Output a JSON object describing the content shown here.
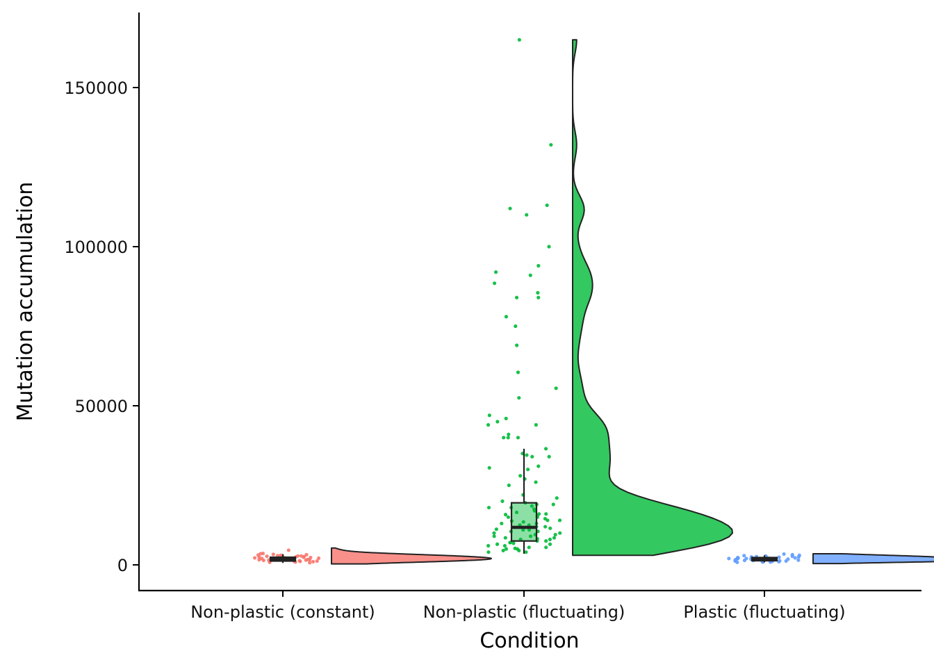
{
  "chart_data": {
    "type": "raincloud",
    "xlabel": "Condition",
    "ylabel": "Mutation accumulation",
    "ylim": [
      -7500,
      172000
    ],
    "yticks": [
      0,
      50000,
      100000,
      150000
    ],
    "yticks_text": [
      "0",
      "50000",
      "100000",
      "150000"
    ],
    "categories": [
      "Non-plastic (constant)",
      "Non-plastic (fluctuating)",
      "Plastic (fluctuating)"
    ],
    "grid": false,
    "legend": "none",
    "groups": [
      {
        "color": "#F8766D",
        "box": {
          "min": 600,
          "q1": 1200,
          "median": 1800,
          "q3": 2400,
          "max": 3400
        },
        "density_range": [
          300,
          5300
        ],
        "points": [
          1200,
          1500,
          1800,
          2100,
          2500,
          900,
          1600,
          2300,
          2800,
          3200,
          1100,
          1900,
          2600,
          3500,
          4600,
          1400,
          2000,
          2400,
          700,
          1700,
          2200,
          3000,
          1300,
          1900,
          2700,
          3300,
          1000,
          1600,
          2100,
          2900,
          1500,
          2400,
          3100,
          800,
          1800,
          2500,
          1200,
          2000,
          2800,
          3600
        ]
      },
      {
        "color": "#00BA38",
        "box": {
          "min": 3500,
          "q1": 7500,
          "median": 11800,
          "q3": 19500,
          "max": 36500
        },
        "density_range": [
          3000,
          165000
        ],
        "points": [
          165000,
          132000,
          113000,
          112000,
          110000,
          100000,
          94000,
          92000,
          91000,
          88500,
          85500,
          84000,
          84000,
          78000,
          75000,
          69000,
          60500,
          55500,
          52500,
          47000,
          46000,
          45000,
          44000,
          44000,
          41000,
          40000,
          40000,
          40000,
          36500,
          35000,
          34500,
          34000,
          34000,
          31000,
          30500,
          30000,
          28000,
          27000,
          26000,
          25000,
          22000,
          21000,
          20000,
          19500,
          19000,
          18500,
          18000,
          17500,
          17000,
          16500,
          16000,
          15500,
          15000,
          14500,
          14000,
          13500,
          13000,
          12500,
          12000,
          11500,
          11000,
          10500,
          10000,
          9500,
          9000,
          8500,
          8000,
          7500,
          7000,
          6500,
          6000,
          5500,
          5000,
          4500,
          4000,
          18000,
          16000,
          14000,
          12000,
          10000,
          9000,
          8000,
          7000,
          6000,
          5000,
          4000,
          17000,
          15000,
          13000,
          11000,
          9500,
          8500,
          7500,
          6500,
          5500,
          4500,
          19000,
          12500,
          10500,
          8200,
          6800,
          5200,
          15800,
          13800,
          11200
        ]
      },
      {
        "color": "#619CFF",
        "box": {
          "min": 800,
          "q1": 1300,
          "median": 1800,
          "q3": 2300,
          "max": 3000
        },
        "density_range": [
          400,
          3500
        ],
        "points": [
          2200,
          1500,
          1000,
          2800,
          1800,
          1200,
          2500,
          1700,
          900,
          2100,
          3200,
          1400,
          2000,
          1100,
          2600,
          1600,
          2300,
          1900,
          800,
          3400,
          1300,
          2400,
          1500,
          2900,
          1000,
          2200,
          1800,
          1200,
          2700,
          1600,
          3000,
          1400,
          2000,
          900,
          2500
        ]
      }
    ]
  }
}
